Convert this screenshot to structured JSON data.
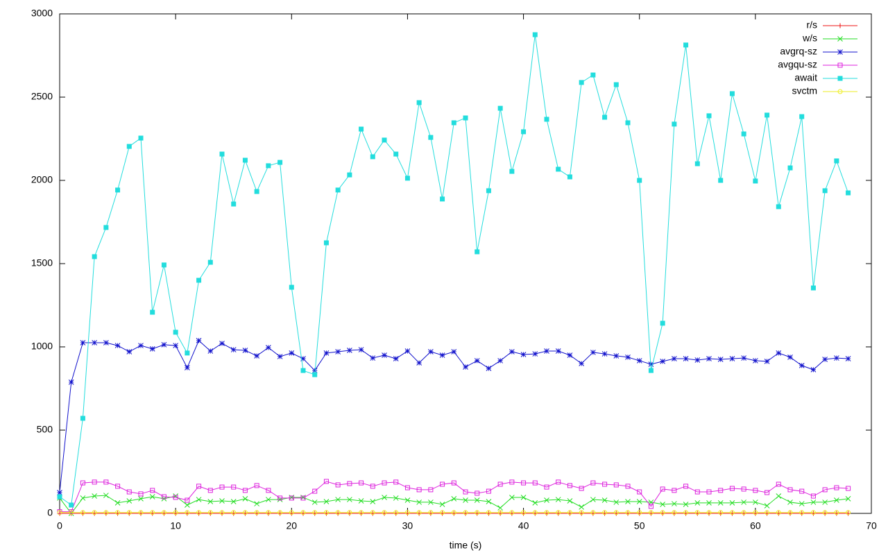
{
  "chart_data": {
    "type": "line",
    "xlabel": "time (s)",
    "x": [
      0,
      1,
      2,
      3,
      4,
      5,
      6,
      7,
      8,
      9,
      10,
      11,
      12,
      13,
      14,
      15,
      16,
      17,
      18,
      19,
      20,
      21,
      22,
      23,
      24,
      25,
      26,
      27,
      28,
      29,
      30,
      31,
      32,
      33,
      34,
      35,
      36,
      37,
      38,
      39,
      40,
      41,
      42,
      43,
      44,
      45,
      46,
      47,
      48,
      49,
      50,
      51,
      52,
      53,
      54,
      55,
      56,
      57,
      58,
      59,
      60,
      61,
      62,
      63,
      64,
      65,
      66,
      67,
      68
    ],
    "xlim": [
      0,
      70
    ],
    "xticks": [
      0,
      10,
      20,
      30,
      40,
      50,
      60,
      70
    ],
    "ylim": [
      0,
      3000
    ],
    "yticks": [
      0,
      500,
      1000,
      1500,
      2000,
      2500,
      3000
    ],
    "grid": false,
    "legend": "top-right",
    "series": [
      {
        "name": "r/s",
        "color": "#ee1111",
        "marker": "plus",
        "values": [
          0,
          0,
          0,
          0,
          0,
          0,
          0,
          0,
          0,
          0,
          0,
          0,
          0,
          0,
          0,
          0,
          0,
          0,
          0,
          0,
          0,
          0,
          0,
          0,
          0,
          0,
          0,
          0,
          0,
          0,
          0,
          0,
          0,
          0,
          0,
          0,
          0,
          0,
          0,
          0,
          0,
          0,
          0,
          0,
          0,
          0,
          0,
          0,
          0,
          0,
          0,
          0,
          0,
          0,
          0,
          0,
          0,
          0,
          0,
          0,
          0,
          0,
          0,
          0,
          0,
          0,
          0,
          0,
          0
        ]
      },
      {
        "name": "w/s",
        "color": "#22dd22",
        "marker": "cross",
        "values": [
          92,
          0,
          92,
          104,
          108,
          63,
          75,
          88,
          100,
          88,
          104,
          50,
          83,
          71,
          75,
          71,
          88,
          58,
          83,
          83,
          96,
          96,
          67,
          71,
          83,
          83,
          75,
          71,
          96,
          92,
          79,
          67,
          67,
          54,
          88,
          79,
          79,
          71,
          33,
          96,
          96,
          63,
          79,
          83,
          75,
          38,
          83,
          79,
          67,
          71,
          71,
          67,
          54,
          58,
          54,
          63,
          63,
          63,
          63,
          67,
          67,
          46,
          104,
          67,
          58,
          67,
          67,
          79,
          88
        ]
      },
      {
        "name": "avgrq-sz",
        "color": "#1111cc",
        "marker": "star",
        "values": [
          125,
          788,
          1025,
          1025,
          1025,
          1008,
          971,
          1008,
          988,
          1013,
          1008,
          875,
          1038,
          975,
          1021,
          983,
          979,
          946,
          996,
          942,
          963,
          929,
          858,
          963,
          971,
          979,
          983,
          933,
          950,
          929,
          975,
          904,
          971,
          950,
          971,
          879,
          917,
          871,
          917,
          971,
          954,
          958,
          975,
          975,
          950,
          900,
          967,
          958,
          946,
          938,
          917,
          896,
          913,
          929,
          929,
          921,
          929,
          925,
          929,
          933,
          917,
          913,
          963,
          938,
          888,
          863,
          925,
          933,
          929
        ]
      },
      {
        "name": "avgqu-sz",
        "color": "#dd22dd",
        "marker": "square",
        "values": [
          10,
          10,
          183,
          188,
          188,
          163,
          129,
          117,
          138,
          100,
          96,
          79,
          163,
          138,
          158,
          158,
          138,
          167,
          138,
          92,
          92,
          92,
          133,
          192,
          171,
          179,
          183,
          163,
          183,
          188,
          154,
          142,
          142,
          175,
          183,
          129,
          121,
          133,
          175,
          188,
          183,
          183,
          158,
          188,
          167,
          150,
          183,
          175,
          171,
          163,
          129,
          42,
          146,
          138,
          163,
          129,
          129,
          138,
          150,
          146,
          138,
          125,
          175,
          142,
          133,
          104,
          142,
          154,
          150
        ]
      },
      {
        "name": "await",
        "color": "#22dddd",
        "marker": "filled-square",
        "values": [
          100,
          50,
          571,
          1542,
          1717,
          1942,
          2204,
          2254,
          1208,
          1492,
          1088,
          963,
          1400,
          1508,
          2158,
          1858,
          2121,
          1933,
          2088,
          2108,
          1358,
          858,
          833,
          1625,
          1942,
          2033,
          2308,
          2142,
          2242,
          2158,
          2013,
          2467,
          2258,
          1888,
          2346,
          2375,
          1571,
          1938,
          2433,
          2054,
          2292,
          2875,
          2367,
          2067,
          2021,
          2588,
          2633,
          2379,
          2575,
          2346,
          2000,
          858,
          1142,
          2338,
          2813,
          2100,
          2388,
          2000,
          2521,
          2279,
          1996,
          2392,
          1842,
          2075,
          2383,
          1354,
          1938,
          2117,
          1925
        ]
      },
      {
        "name": "svctm",
        "color": "#eeee22",
        "marker": "circle",
        "values": [
          5,
          5,
          5,
          5,
          5,
          5,
          5,
          5,
          5,
          5,
          5,
          5,
          5,
          5,
          5,
          5,
          5,
          5,
          5,
          5,
          5,
          5,
          5,
          5,
          5,
          5,
          5,
          5,
          5,
          5,
          5,
          5,
          5,
          5,
          5,
          5,
          5,
          5,
          5,
          5,
          5,
          5,
          5,
          5,
          5,
          5,
          5,
          5,
          5,
          5,
          5,
          5,
          5,
          5,
          5,
          5,
          5,
          5,
          5,
          5,
          5,
          5,
          5,
          5,
          5,
          5,
          5,
          5,
          5
        ]
      }
    ]
  }
}
